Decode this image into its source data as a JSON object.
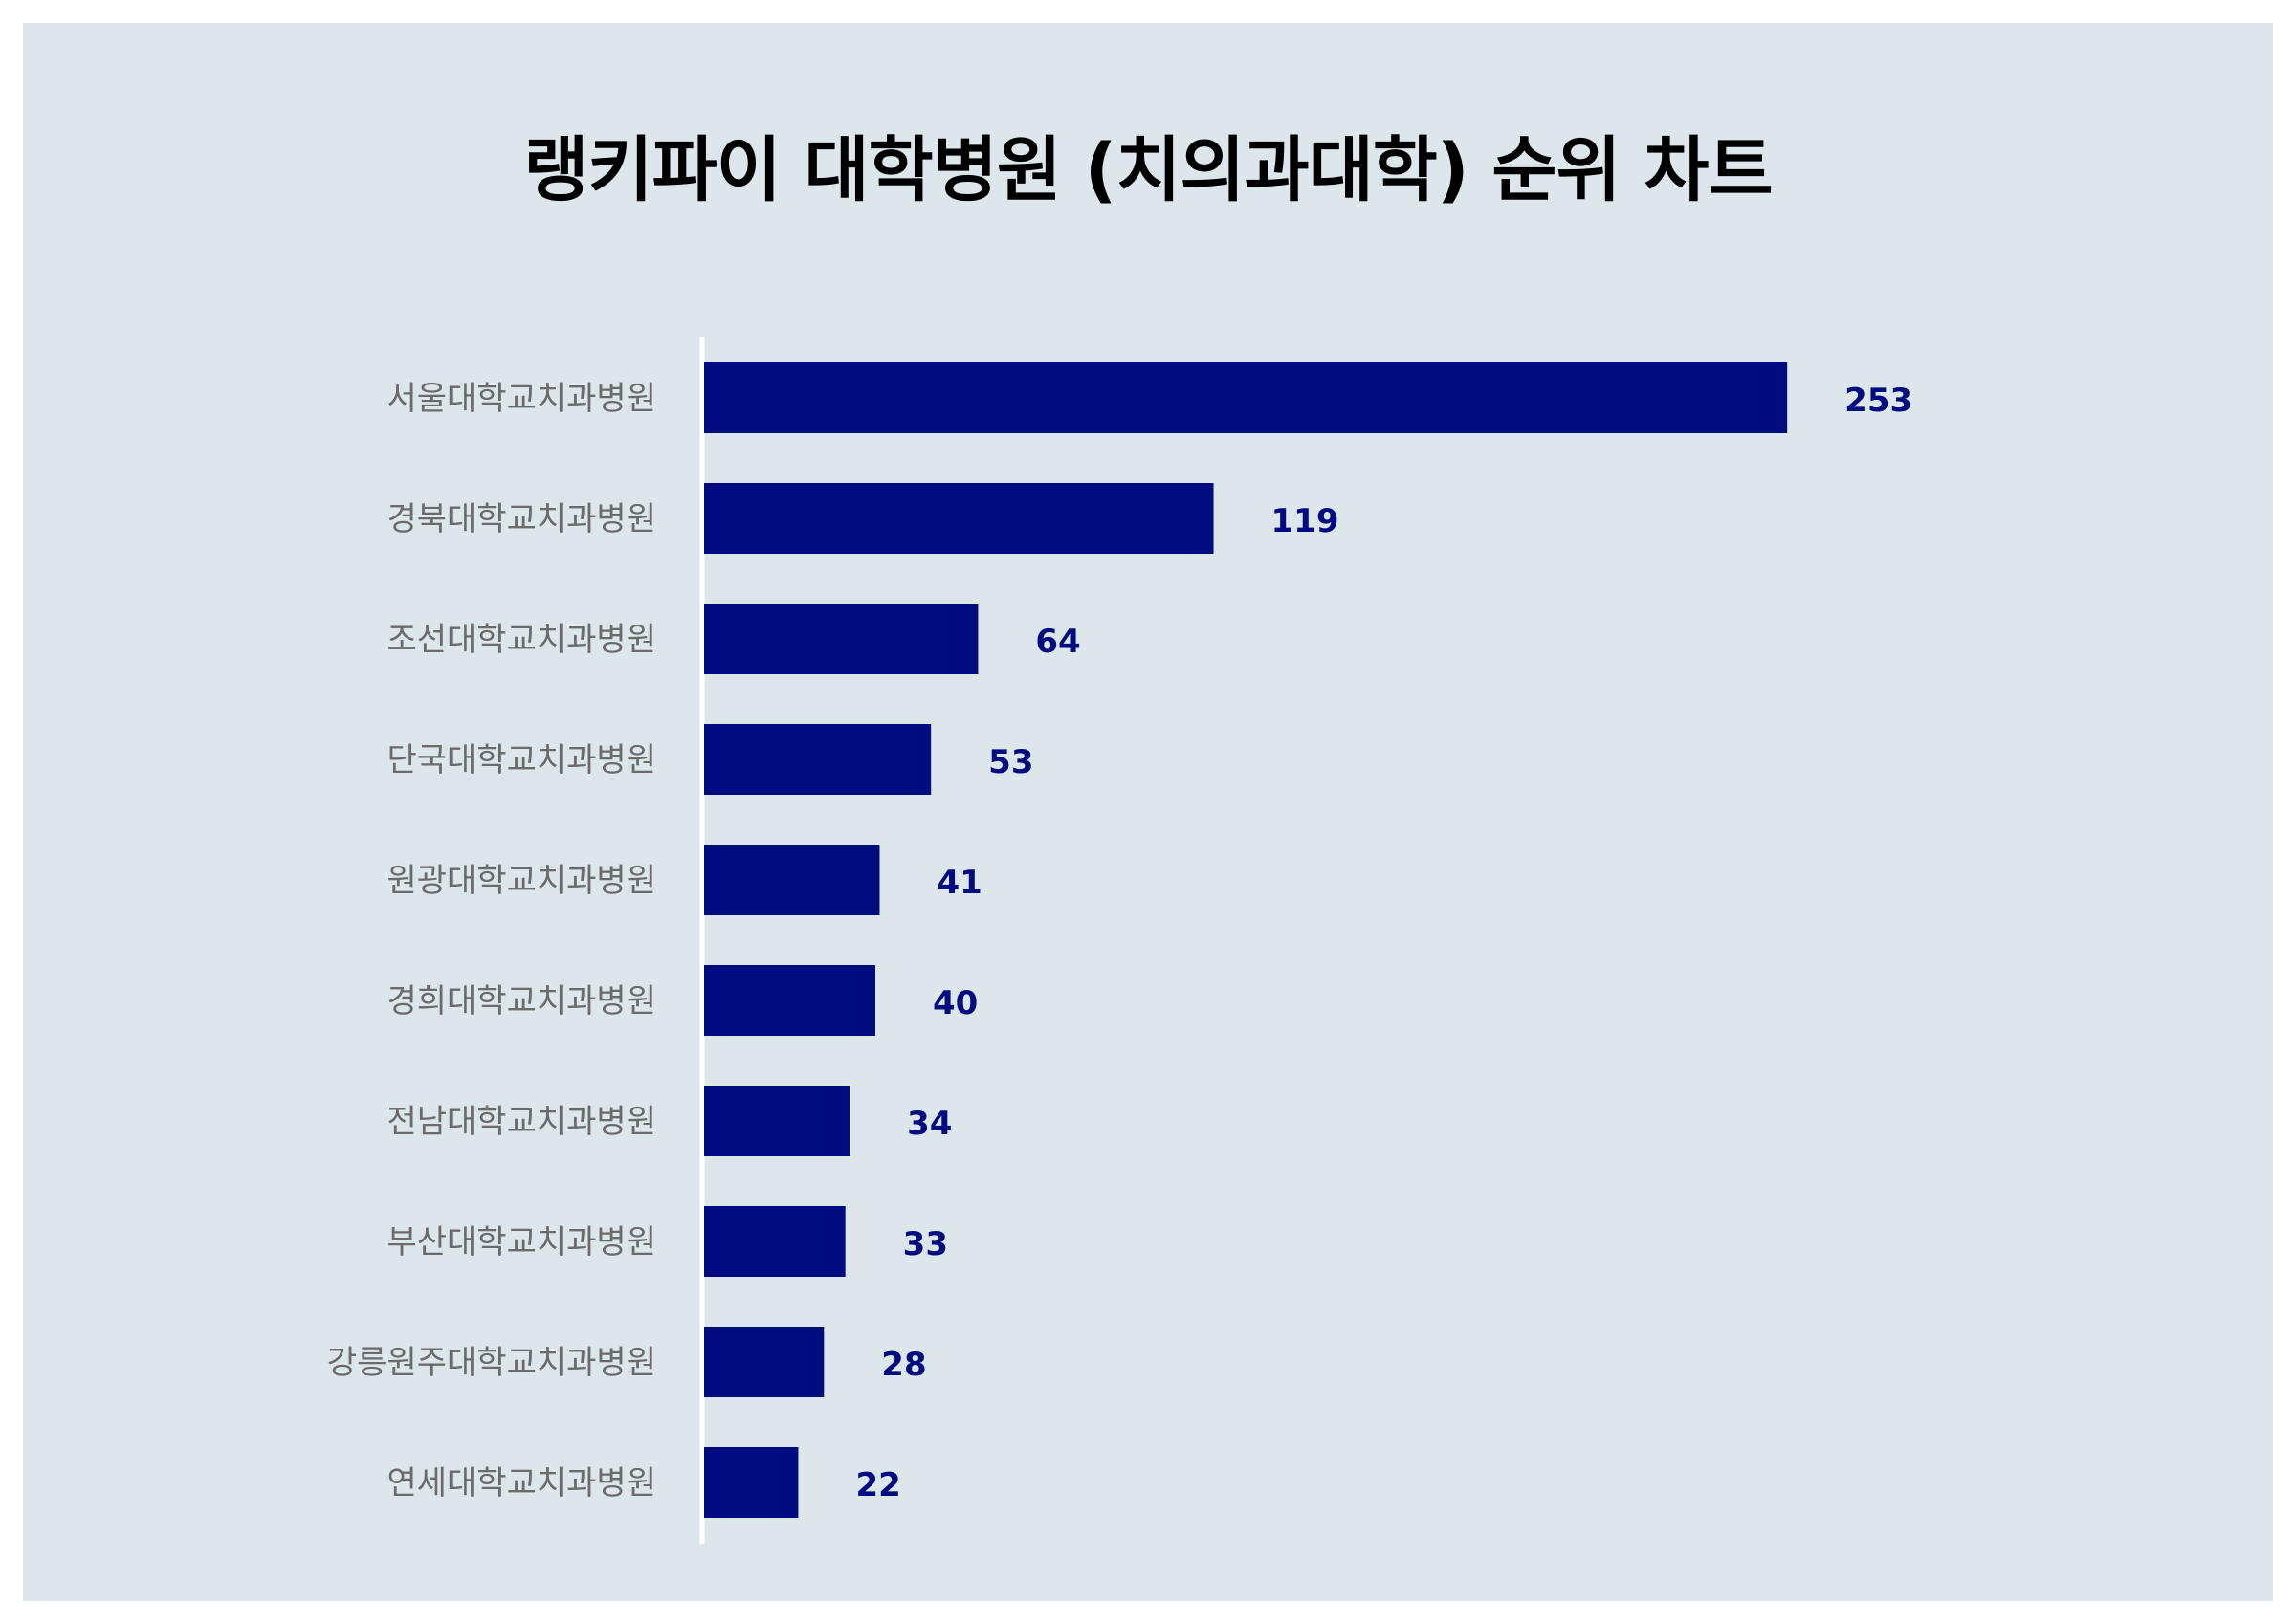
{
  "chart_data": {
    "type": "bar",
    "orientation": "horizontal",
    "title": "랭키파이 대학병원 (치의과대학) 순위 차트",
    "categories": [
      "서울대학교치과병원",
      "경북대학교치과병원",
      "조선대학교치과병원",
      "단국대학교치과병원",
      "원광대학교치과병원",
      "경희대학교치과병원",
      "전남대학교치과병원",
      "부산대학교치과병원",
      "강릉원주대학교치과병원",
      "연세대학교치과병원"
    ],
    "values": [
      253,
      119,
      64,
      53,
      41,
      40,
      34,
      33,
      28,
      22
    ],
    "xlim": [
      0,
      300
    ],
    "grid": false,
    "legend": "none",
    "colors": {
      "bar": "#000c80",
      "value_label": "#000c80",
      "category_label": "#6b6b6b",
      "background": "#dce6eb",
      "axis_line": "#ffffff"
    }
  }
}
